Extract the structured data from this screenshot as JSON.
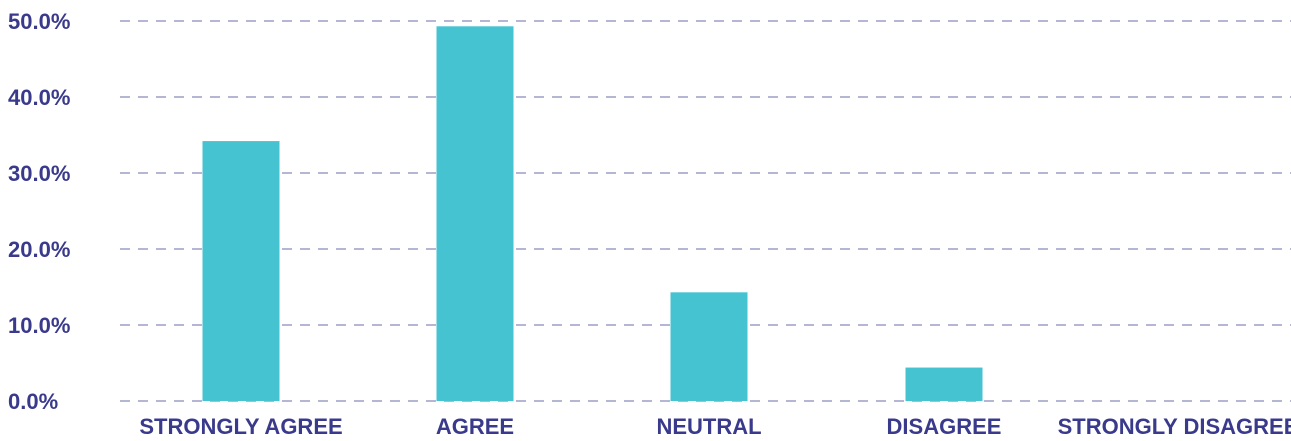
{
  "chart_data": {
    "type": "bar",
    "categories": [
      "STRONGLY AGREE",
      "AGREE",
      "NEUTRAL",
      "DISAGREE",
      "STRONGLY DISAGREE"
    ],
    "values": [
      34.2,
      49.3,
      14.3,
      4.4,
      0.0
    ],
    "ylim": [
      0,
      50
    ],
    "yticks": [
      0,
      10,
      20,
      30,
      40,
      50
    ],
    "ytick_labels": [
      "0.0%",
      "10.0%",
      "20.0%",
      "30.0%",
      "40.0%",
      "50.0%"
    ],
    "grid": true,
    "legend": "none",
    "colors": {
      "bar": "#45c3d1",
      "text": "#3a3a8c",
      "grid": "#6b6ba8"
    }
  }
}
